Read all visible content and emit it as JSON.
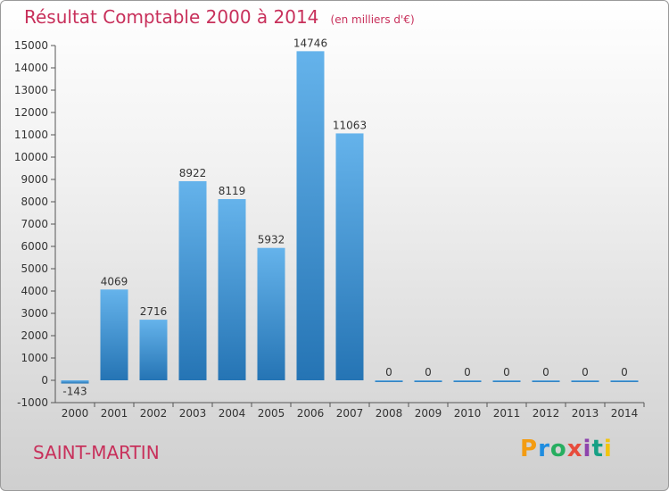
{
  "chart_data": {
    "type": "bar",
    "title": "Résultat Comptable 2000 à 2014",
    "subtitle": "(en milliers d'€)",
    "categories": [
      "2000",
      "2001",
      "2002",
      "2003",
      "2004",
      "2005",
      "2006",
      "2007",
      "2008",
      "2009",
      "2010",
      "2011",
      "2012",
      "2013",
      "2014"
    ],
    "values": [
      -143,
      4069,
      2716,
      8922,
      8119,
      5932,
      14746,
      11063,
      0,
      0,
      0,
      0,
      0,
      0,
      0
    ],
    "value_labels": [
      "-143",
      "4069",
      "2716",
      "8922",
      "8119",
      "5932",
      "14746",
      "11063",
      "0",
      "0",
      "0",
      "0",
      "0",
      "0",
      "0"
    ],
    "ylim": [
      -1000,
      15000
    ],
    "yticks": [
      "-1000",
      "0",
      "1000",
      "2000",
      "3000",
      "4000",
      "5000",
      "6000",
      "7000",
      "8000",
      "9000",
      "10000",
      "11000",
      "12000",
      "13000",
      "14000",
      "15000"
    ],
    "ytick_values": [
      -1000,
      0,
      1000,
      2000,
      3000,
      4000,
      5000,
      6000,
      7000,
      8000,
      9000,
      10000,
      11000,
      12000,
      13000,
      14000,
      15000
    ],
    "grid": false,
    "colors": {
      "bar_light": "#65b3eb",
      "bar_dark": "#2574b4",
      "title": "#c8305b"
    }
  },
  "footer": {
    "commune": "SAINT-MARTIN",
    "logo": "Proxiti",
    "logo_colors": [
      "#f39c12",
      "#1f8de0",
      "#27ae60",
      "#e74c3c",
      "#8e44ad",
      "#16a085",
      "#f1c40f"
    ]
  }
}
